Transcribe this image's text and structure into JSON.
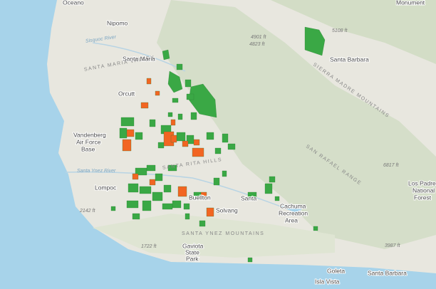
{
  "map": {
    "labels": {
      "oceano": "Oceano",
      "nipomo": "Nipomo",
      "santa_maria": "Santa Maria",
      "orcutt": "Orcutt",
      "vandenberg": [
        "Vandenberg",
        "Air Force",
        "Base"
      ],
      "lompoc": "Lompoc",
      "buellton": "Buellton",
      "solvang": "Solvang",
      "santa_ynez": "Santa",
      "cachuma": [
        "Cachuma",
        "Recreation",
        "Area"
      ],
      "gaviota": [
        "Gaviota",
        "State",
        "Park"
      ],
      "goleta": "Goleta",
      "santa_barbara_city": "Santa Barbara",
      "isla_vista": "Isla Vista",
      "los_padres": [
        "Los Padres",
        "National",
        "Forest"
      ],
      "monument": "Monument",
      "santa_barbara_north": "Santa Barbara",
      "sisquoc_river": "Sisquoc River",
      "santa_ynez_river": "Santa Ynez River",
      "santa_maria_valley": "SANTA MARIA VALLEY",
      "santa_rita_hills": "SANTA RITA HILLS",
      "santa_ynez_mountains": "SANTA YNEZ MOUNTAINS",
      "san_rafael_range": "SAN RAFAEL RANGE",
      "sierra_madre": "SIERRA MADRE MOUNTAINS"
    },
    "elevations": [
      "4901 ft",
      "4823 ft",
      "5108 ft",
      "6817 ft",
      "2142 ft",
      "1722 ft",
      "3987 ft"
    ]
  }
}
